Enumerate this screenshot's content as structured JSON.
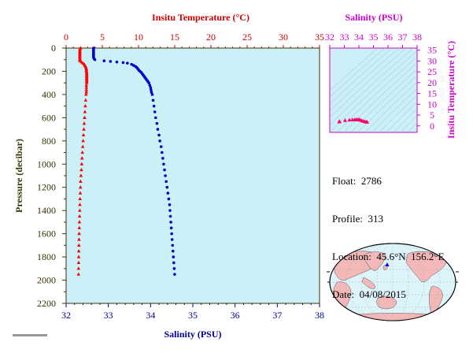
{
  "chart_data": [
    {
      "type": "scatter",
      "top_axis": {
        "label": "Insitu Temperature (°C)",
        "ticks": [
          "0",
          "5",
          "10",
          "15",
          "20",
          "25",
          "30",
          "35"
        ],
        "range": [
          0,
          35
        ],
        "color": "#cc0000"
      },
      "bottom_axis": {
        "label": "Salinity (PSU)",
        "ticks": [
          "32",
          "33",
          "34",
          "35",
          "36",
          "37",
          "38"
        ],
        "range": [
          32,
          38
        ],
        "color": "#000099"
      },
      "left_axis": {
        "label": "Pressure (decibar)",
        "ticks": [
          "0",
          "200",
          "400",
          "600",
          "800",
          "1000",
          "1200",
          "1400",
          "1600",
          "1800",
          "2000",
          "2200"
        ],
        "range": [
          0,
          2200
        ],
        "inverted": true,
        "color": "#333300"
      },
      "background": "#ccf0f8",
      "grid": false,
      "series": [
        {
          "marker": "triangle",
          "color": "#ff0000",
          "axis": "top",
          "points": [
            [
              2.0,
              0
            ],
            [
              1.9,
              10
            ],
            [
              1.9,
              20
            ],
            [
              1.9,
              30
            ],
            [
              1.9,
              40
            ],
            [
              1.9,
              50
            ],
            [
              1.9,
              60
            ],
            [
              1.9,
              70
            ],
            [
              1.9,
              80
            ],
            [
              1.9,
              90
            ],
            [
              1.9,
              100
            ],
            [
              1.9,
              110
            ],
            [
              2.1,
              120
            ],
            [
              2.3,
              130
            ],
            [
              2.5,
              140
            ],
            [
              2.6,
              150
            ],
            [
              2.7,
              160
            ],
            [
              2.75,
              170
            ],
            [
              2.8,
              180
            ],
            [
              2.8,
              190
            ],
            [
              2.8,
              200
            ],
            [
              2.85,
              210
            ],
            [
              2.85,
              220
            ],
            [
              2.85,
              230
            ],
            [
              2.85,
              240
            ],
            [
              2.85,
              250
            ],
            [
              2.85,
              260
            ],
            [
              2.85,
              270
            ],
            [
              2.85,
              280
            ],
            [
              2.85,
              290
            ],
            [
              2.85,
              300
            ],
            [
              2.8,
              320
            ],
            [
              2.8,
              340
            ],
            [
              2.8,
              360
            ],
            [
              2.8,
              380
            ],
            [
              2.75,
              400
            ],
            [
              2.7,
              450
            ],
            [
              2.65,
              500
            ],
            [
              2.6,
              550
            ],
            [
              2.55,
              600
            ],
            [
              2.5,
              650
            ],
            [
              2.45,
              700
            ],
            [
              2.4,
              750
            ],
            [
              2.35,
              800
            ],
            [
              2.3,
              850
            ],
            [
              2.25,
              900
            ],
            [
              2.2,
              950
            ],
            [
              2.15,
              1000
            ],
            [
              2.1,
              1050
            ],
            [
              2.05,
              1100
            ],
            [
              2.0,
              1150
            ],
            [
              1.98,
              1200
            ],
            [
              1.95,
              1250
            ],
            [
              1.92,
              1300
            ],
            [
              1.9,
              1350
            ],
            [
              1.88,
              1400
            ],
            [
              1.86,
              1450
            ],
            [
              1.84,
              1500
            ],
            [
              1.82,
              1550
            ],
            [
              1.8,
              1600
            ],
            [
              1.78,
              1650
            ],
            [
              1.77,
              1700
            ],
            [
              1.75,
              1750
            ],
            [
              1.74,
              1800
            ],
            [
              1.73,
              1850
            ],
            [
              1.72,
              1900
            ],
            [
              1.71,
              1950
            ]
          ]
        },
        {
          "marker": "circle",
          "color": "#0000cc",
          "axis": "bottom",
          "points": [
            [
              32.65,
              0
            ],
            [
              32.65,
              10
            ],
            [
              32.65,
              20
            ],
            [
              32.65,
              30
            ],
            [
              32.65,
              40
            ],
            [
              32.65,
              50
            ],
            [
              32.65,
              60
            ],
            [
              32.65,
              70
            ],
            [
              32.65,
              80
            ],
            [
              32.66,
              90
            ],
            [
              32.68,
              100
            ],
            [
              32.9,
              110
            ],
            [
              33.05,
              115
            ],
            [
              33.2,
              120
            ],
            [
              33.35,
              125
            ],
            [
              33.45,
              130
            ],
            [
              33.55,
              140
            ],
            [
              33.6,
              150
            ],
            [
              33.65,
              160
            ],
            [
              33.68,
              170
            ],
            [
              33.7,
              180
            ],
            [
              33.72,
              190
            ],
            [
              33.75,
              200
            ],
            [
              33.78,
              210
            ],
            [
              33.8,
              220
            ],
            [
              33.82,
              230
            ],
            [
              33.84,
              240
            ],
            [
              33.86,
              250
            ],
            [
              33.88,
              260
            ],
            [
              33.9,
              270
            ],
            [
              33.92,
              280
            ],
            [
              33.94,
              290
            ],
            [
              33.96,
              300
            ],
            [
              33.98,
              320
            ],
            [
              34.0,
              340
            ],
            [
              34.01,
              360
            ],
            [
              34.02,
              380
            ],
            [
              34.04,
              400
            ],
            [
              34.06,
              450
            ],
            [
              34.08,
              500
            ],
            [
              34.1,
              550
            ],
            [
              34.12,
              600
            ],
            [
              34.15,
              650
            ],
            [
              34.17,
              700
            ],
            [
              34.2,
              750
            ],
            [
              34.22,
              800
            ],
            [
              34.25,
              850
            ],
            [
              34.27,
              900
            ],
            [
              34.29,
              950
            ],
            [
              34.31,
              1000
            ],
            [
              34.33,
              1050
            ],
            [
              34.35,
              1100
            ],
            [
              34.37,
              1150
            ],
            [
              34.39,
              1200
            ],
            [
              34.41,
              1250
            ],
            [
              34.43,
              1300
            ],
            [
              34.45,
              1350
            ],
            [
              34.46,
              1400
            ],
            [
              34.47,
              1450
            ],
            [
              34.48,
              1500
            ],
            [
              34.49,
              1550
            ],
            [
              34.5,
              1600
            ],
            [
              34.51,
              1650
            ],
            [
              34.52,
              1700
            ],
            [
              34.53,
              1750
            ],
            [
              34.54,
              1800
            ],
            [
              34.55,
              1850
            ],
            [
              34.56,
              1900
            ],
            [
              34.57,
              1950
            ]
          ]
        }
      ]
    },
    {
      "type": "scatter",
      "top_axis": {
        "label": "Salinity (PSU)",
        "ticks": [
          "32",
          "33",
          "34",
          "35",
          "36",
          "37",
          "38"
        ],
        "range": [
          32,
          38
        ],
        "color": "#cc00cc"
      },
      "right_axis": {
        "label": "Insitu Temperature (°C)",
        "ticks": [
          "0",
          "5",
          "10",
          "15",
          "20",
          "25",
          "30",
          "35"
        ],
        "range": [
          -3,
          36
        ],
        "color": "#cc00cc"
      },
      "background": "#ccf0f8",
      "series": [
        {
          "marker": "triangle",
          "color": "#ff0066",
          "points": [
            [
              32.65,
              2.0
            ],
            [
              32.65,
              1.9
            ],
            [
              32.68,
              1.9
            ],
            [
              33.05,
              2.5
            ],
            [
              33.35,
              2.7
            ],
            [
              33.55,
              2.8
            ],
            [
              33.7,
              2.8
            ],
            [
              33.8,
              2.85
            ],
            [
              33.9,
              2.85
            ],
            [
              34.0,
              2.8
            ],
            [
              34.05,
              2.75
            ],
            [
              34.1,
              2.6
            ],
            [
              34.2,
              2.4
            ],
            [
              34.3,
              2.15
            ],
            [
              34.4,
              1.95
            ],
            [
              34.5,
              1.8
            ],
            [
              34.57,
              1.71
            ]
          ]
        }
      ]
    }
  ],
  "info": {
    "float_label": "Float:",
    "float_value": "2786",
    "profile_label": "Profile:",
    "profile_value": "313",
    "location_label": "Location:",
    "location_value": "45.6°N  156.2°E",
    "date_label": "Date:",
    "date_value": "04/08/2015"
  },
  "map": {
    "ocean_color": "#ddf4fb",
    "land_color": "#f4b8b8",
    "marker_color": "#0000ff"
  }
}
